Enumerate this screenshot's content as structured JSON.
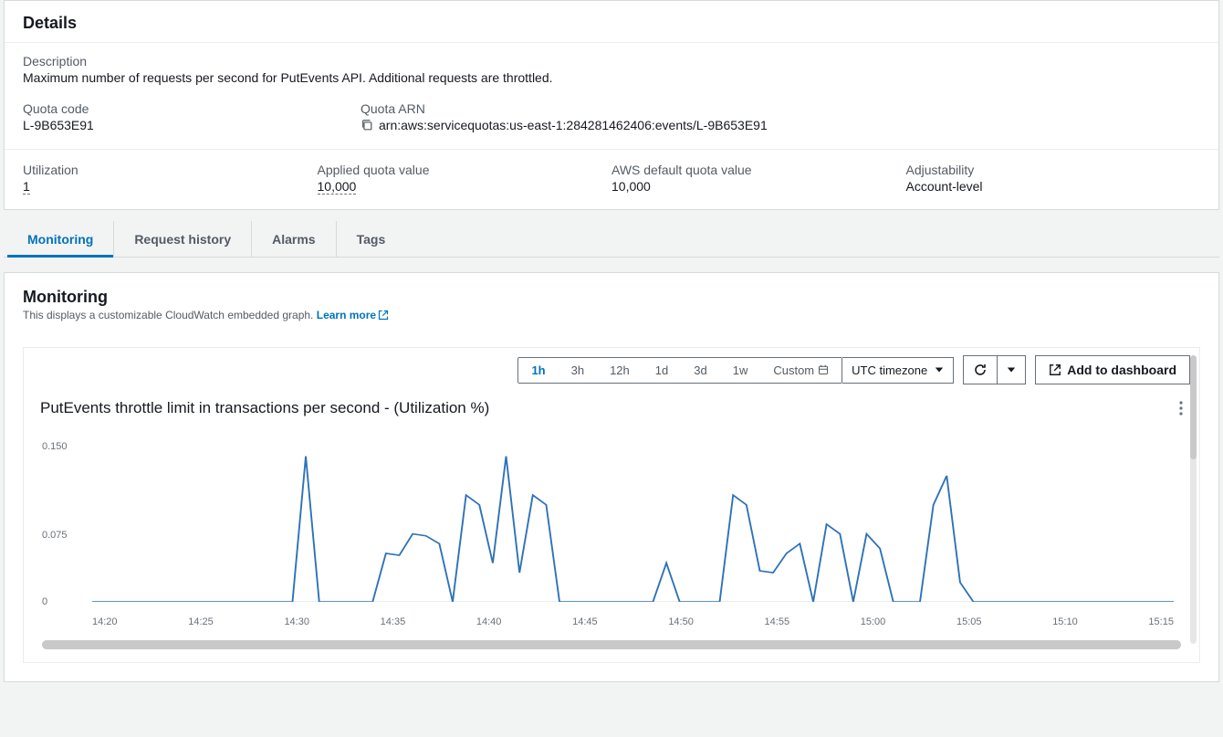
{
  "details": {
    "title": "Details",
    "description_label": "Description",
    "description_value": "Maximum number of requests per second for PutEvents API. Additional requests are throttled.",
    "quota_code_label": "Quota code",
    "quota_code_value": "L-9B653E91",
    "quota_arn_label": "Quota ARN",
    "quota_arn_value": "arn:aws:servicequotas:us-east-1:284281462406:events/L-9B653E91",
    "utilization_label": "Utilization",
    "utilization_value": "1",
    "applied_label": "Applied quota value",
    "applied_value": "10,000",
    "default_label": "AWS default quota value",
    "default_value": "10,000",
    "adjustability_label": "Adjustability",
    "adjustability_value": "Account-level"
  },
  "tabs": {
    "monitoring": "Monitoring",
    "request_history": "Request history",
    "alarms": "Alarms",
    "tags": "Tags"
  },
  "monitoring": {
    "title": "Monitoring",
    "subtext": "This displays a customizable CloudWatch embedded graph.",
    "learn_more": "Learn more",
    "timezone_label": "UTC timezone",
    "add_dashboard": "Add to dashboard",
    "ranges": {
      "h1": "1h",
      "h3": "3h",
      "h12": "12h",
      "d1": "1d",
      "d3": "3d",
      "w1": "1w",
      "custom": "Custom"
    }
  },
  "chart": {
    "type": "line",
    "title": "PutEvents throttle limit in transactions per second - (Utilization %)",
    "line_color": "#2d72b8",
    "background_color": "#ffffff",
    "axis_color": "#687078",
    "title_fontsize": 17,
    "label_fontsize": 11,
    "ylim": [
      0,
      0.16
    ],
    "y_ticks": [
      0,
      0.075,
      0.15
    ],
    "x_labels": [
      "14:20",
      "14:25",
      "14:30",
      "14:35",
      "14:40",
      "14:45",
      "14:50",
      "14:55",
      "15:00",
      "15:05",
      "15:10",
      "15:15"
    ],
    "values": [
      0,
      0,
      0,
      0,
      0,
      0,
      0,
      0,
      0,
      0,
      0,
      0,
      0,
      0,
      0,
      0,
      0.15,
      0,
      0,
      0,
      0,
      0,
      0.05,
      0.048,
      0.07,
      0.068,
      0.06,
      0,
      0.11,
      0.1,
      0.04,
      0.15,
      0.03,
      0.11,
      0.1,
      0,
      0,
      0,
      0,
      0,
      0,
      0,
      0,
      0.04,
      0,
      0,
      0,
      0,
      0.11,
      0.1,
      0.032,
      0.03,
      0.05,
      0.06,
      0,
      0.08,
      0.07,
      0,
      0.07,
      0.055,
      0,
      0,
      0,
      0.1,
      0.13,
      0.02,
      0,
      0,
      0,
      0,
      0,
      0,
      0,
      0,
      0,
      0,
      0,
      0,
      0,
      0,
      0,
      0
    ]
  }
}
